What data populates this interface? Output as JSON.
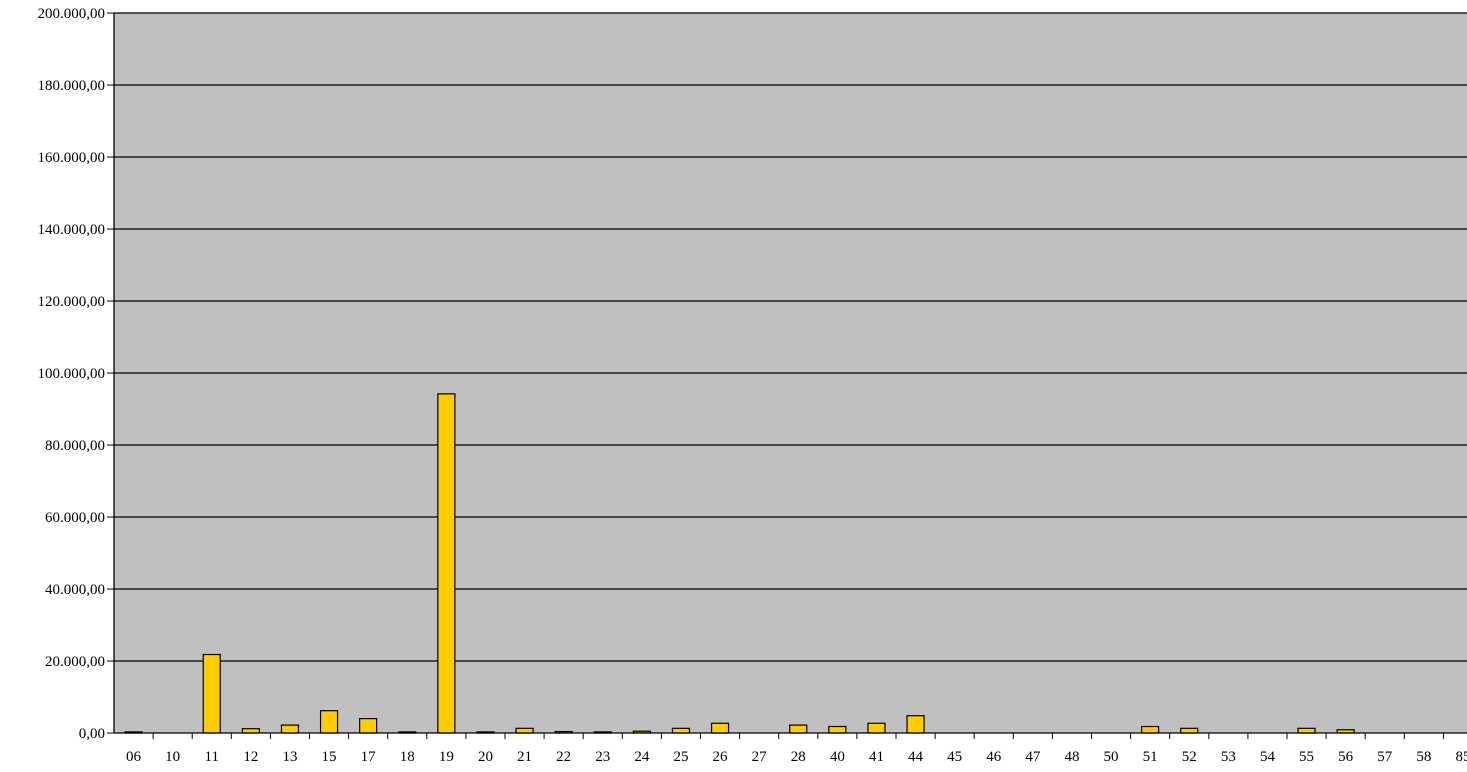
{
  "chart_data": {
    "type": "bar",
    "title": "",
    "xlabel": "",
    "ylabel": "",
    "ylim": [
      0,
      200000
    ],
    "grid": true,
    "legend": "none",
    "y_ticks": [
      "0,00",
      "20.000,00",
      "40.000,00",
      "60.000,00",
      "80.000,00",
      "100.000,00",
      "120.000,00",
      "140.000,00",
      "160.000,00",
      "180.000,00",
      "200.000,00"
    ],
    "categories": [
      "06",
      "10",
      "11",
      "12",
      "13",
      "15",
      "17",
      "18",
      "19",
      "20",
      "21",
      "22",
      "23",
      "24",
      "25",
      "26",
      "27",
      "28",
      "40",
      "41",
      "44",
      "45",
      "46",
      "47",
      "48",
      "50",
      "51",
      "52",
      "53",
      "54",
      "55",
      "56",
      "57",
      "58",
      "85"
    ],
    "values": [
      300,
      0,
      21800,
      1200,
      2200,
      6200,
      4000,
      300,
      94200,
      300,
      1300,
      400,
      300,
      500,
      1300,
      2700,
      0,
      2200,
      1800,
      2700,
      4800,
      0,
      0,
      0,
      0,
      0,
      1800,
      1300,
      0,
      0,
      1300,
      900,
      0,
      0,
      0
    ],
    "colors": {
      "plot_background": "#c0c0c0",
      "bar_fill": "#ffcc00",
      "bar_stroke": "#000000",
      "gridline": "#000000"
    }
  }
}
